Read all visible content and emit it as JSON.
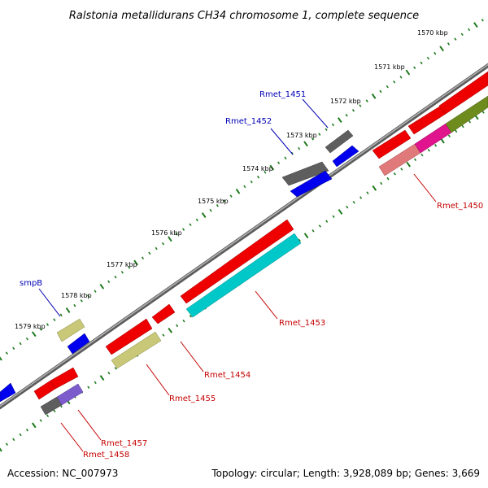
{
  "title": "Ralstonia metallidurans CH34 chromosome 1, complete sequence",
  "footer": {
    "accession": "Accession: NC_007973",
    "summary": "Topology: circular; Length: 3,928,089 bp; Genes: 3,669"
  },
  "ticks": [
    "1570 kbp",
    "1571 kbp",
    "1572 kbp",
    "1573 kbp",
    "1574 kbp",
    "1575 kbp",
    "1576 kbp",
    "1577 kbp",
    "1578 kbp",
    "1579 kbp"
  ],
  "gene_labels": {
    "top": [
      "smpB",
      "Rmet_1452",
      "Rmet_1451"
    ],
    "bottom": [
      "Rmet_1450",
      "Rmet_1453",
      "Rmet_1454",
      "Rmet_1455",
      "Rmet_1457",
      "Rmet_1458"
    ]
  },
  "colors": {
    "cds": "#ee0000",
    "gene_gray": "#5e5e5e",
    "blue": "#0000ee",
    "cyan": "#00c8c8",
    "khaki": "#c8c878",
    "pink": "#e07a7a",
    "magenta": "#e0148c",
    "olive": "#6e8c1e",
    "purple": "#7c5ccc",
    "backbone": "#8a8a8a",
    "tick": "#1e7a1e",
    "label_blue": "#0000b4",
    "label_red": "#c40000"
  }
}
